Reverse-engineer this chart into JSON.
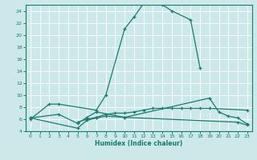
{
  "xlabel": "Humidex (Indice chaleur)",
  "xlim": [
    -0.5,
    23.5
  ],
  "ylim": [
    4,
    25
  ],
  "yticks": [
    4,
    6,
    8,
    10,
    12,
    14,
    16,
    18,
    20,
    22,
    24
  ],
  "xticks": [
    0,
    1,
    2,
    3,
    4,
    5,
    6,
    7,
    8,
    9,
    10,
    11,
    12,
    13,
    14,
    15,
    16,
    17,
    18,
    19,
    20,
    21,
    22,
    23
  ],
  "bg_color": "#cce8e8",
  "line_color": "#1a7a6e",
  "grid_color": "#ffffff",
  "line1_x": [
    0,
    2,
    3,
    7,
    8,
    10,
    11,
    12,
    13,
    14,
    15,
    17,
    18
  ],
  "line1_y": [
    6.0,
    8.5,
    8.5,
    7.5,
    10.0,
    21.0,
    23.0,
    25.2,
    25.2,
    25.0,
    24.0,
    22.5,
    14.5
  ],
  "line2_x": [
    0,
    3,
    5,
    6,
    7,
    10,
    19,
    20,
    21,
    22,
    23
  ],
  "line2_y": [
    6.2,
    6.8,
    5.3,
    6.3,
    7.2,
    6.3,
    9.5,
    7.2,
    6.5,
    6.2,
    5.2
  ],
  "line3_x": [
    0,
    5,
    6,
    7,
    8,
    10,
    22,
    23
  ],
  "line3_y": [
    6.2,
    4.5,
    5.8,
    6.2,
    6.5,
    6.3,
    5.5,
    5.0
  ],
  "line4_x": [
    5,
    6,
    7,
    8,
    9,
    10,
    11,
    12,
    13,
    14,
    15,
    16,
    17,
    18,
    19,
    23
  ],
  "line4_y": [
    5.5,
    6.0,
    6.3,
    6.8,
    7.0,
    7.0,
    7.2,
    7.5,
    7.8,
    7.8,
    7.8,
    7.8,
    7.8,
    7.8,
    7.8,
    7.5
  ]
}
